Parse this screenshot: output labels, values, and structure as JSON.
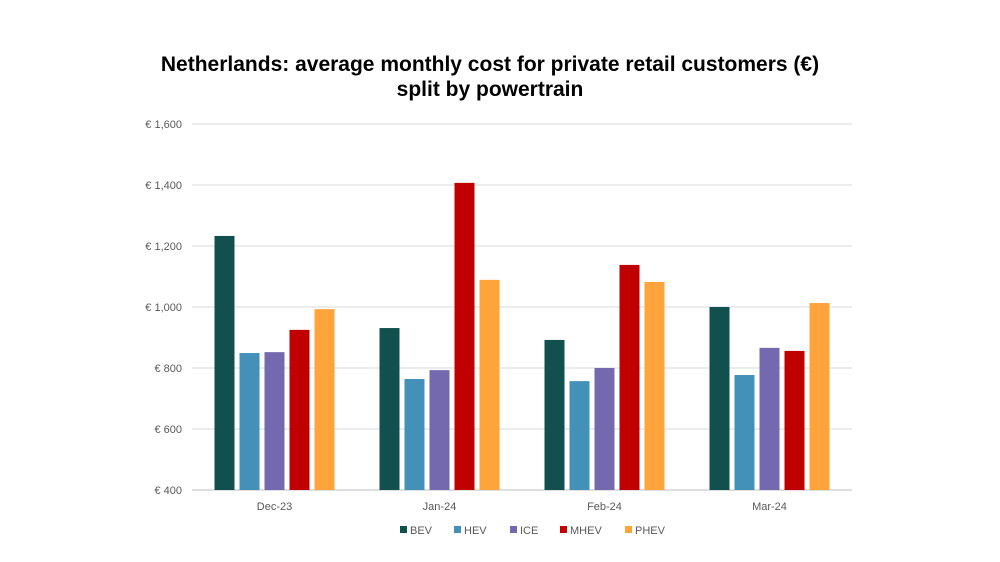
{
  "chart_data": {
    "type": "bar",
    "title": "Netherlands: average monthly cost for private retail customers (€) split by powertrain",
    "categories": [
      "Dec-23",
      "Jan-24",
      "Feb-24",
      "Mar-24"
    ],
    "series": [
      {
        "name": "BEV",
        "color": "#12504F",
        "values": [
          1233,
          931,
          892,
          1000
        ]
      },
      {
        "name": "HEV",
        "color": "#4391B8",
        "values": [
          849,
          764,
          757,
          777
        ]
      },
      {
        "name": "ICE",
        "color": "#7469AF",
        "values": [
          852,
          793,
          800,
          866
        ]
      },
      {
        "name": "MHEV",
        "color": "#C00000",
        "values": [
          925,
          1407,
          1138,
          856
        ]
      },
      {
        "name": "PHEV",
        "color": "#FFA33B",
        "values": [
          993,
          1089,
          1082,
          1013
        ]
      }
    ],
    "ylim": [
      400,
      1600
    ],
    "yticks": [
      400,
      600,
      800,
      1000,
      1200,
      1400,
      1600
    ],
    "ytick_labels": [
      "€ 400",
      "€ 600",
      "€ 800",
      "€ 1,000",
      "€ 1,200",
      "€ 1,400",
      "€ 1,600"
    ],
    "grid": true,
    "legend": "bottom"
  }
}
